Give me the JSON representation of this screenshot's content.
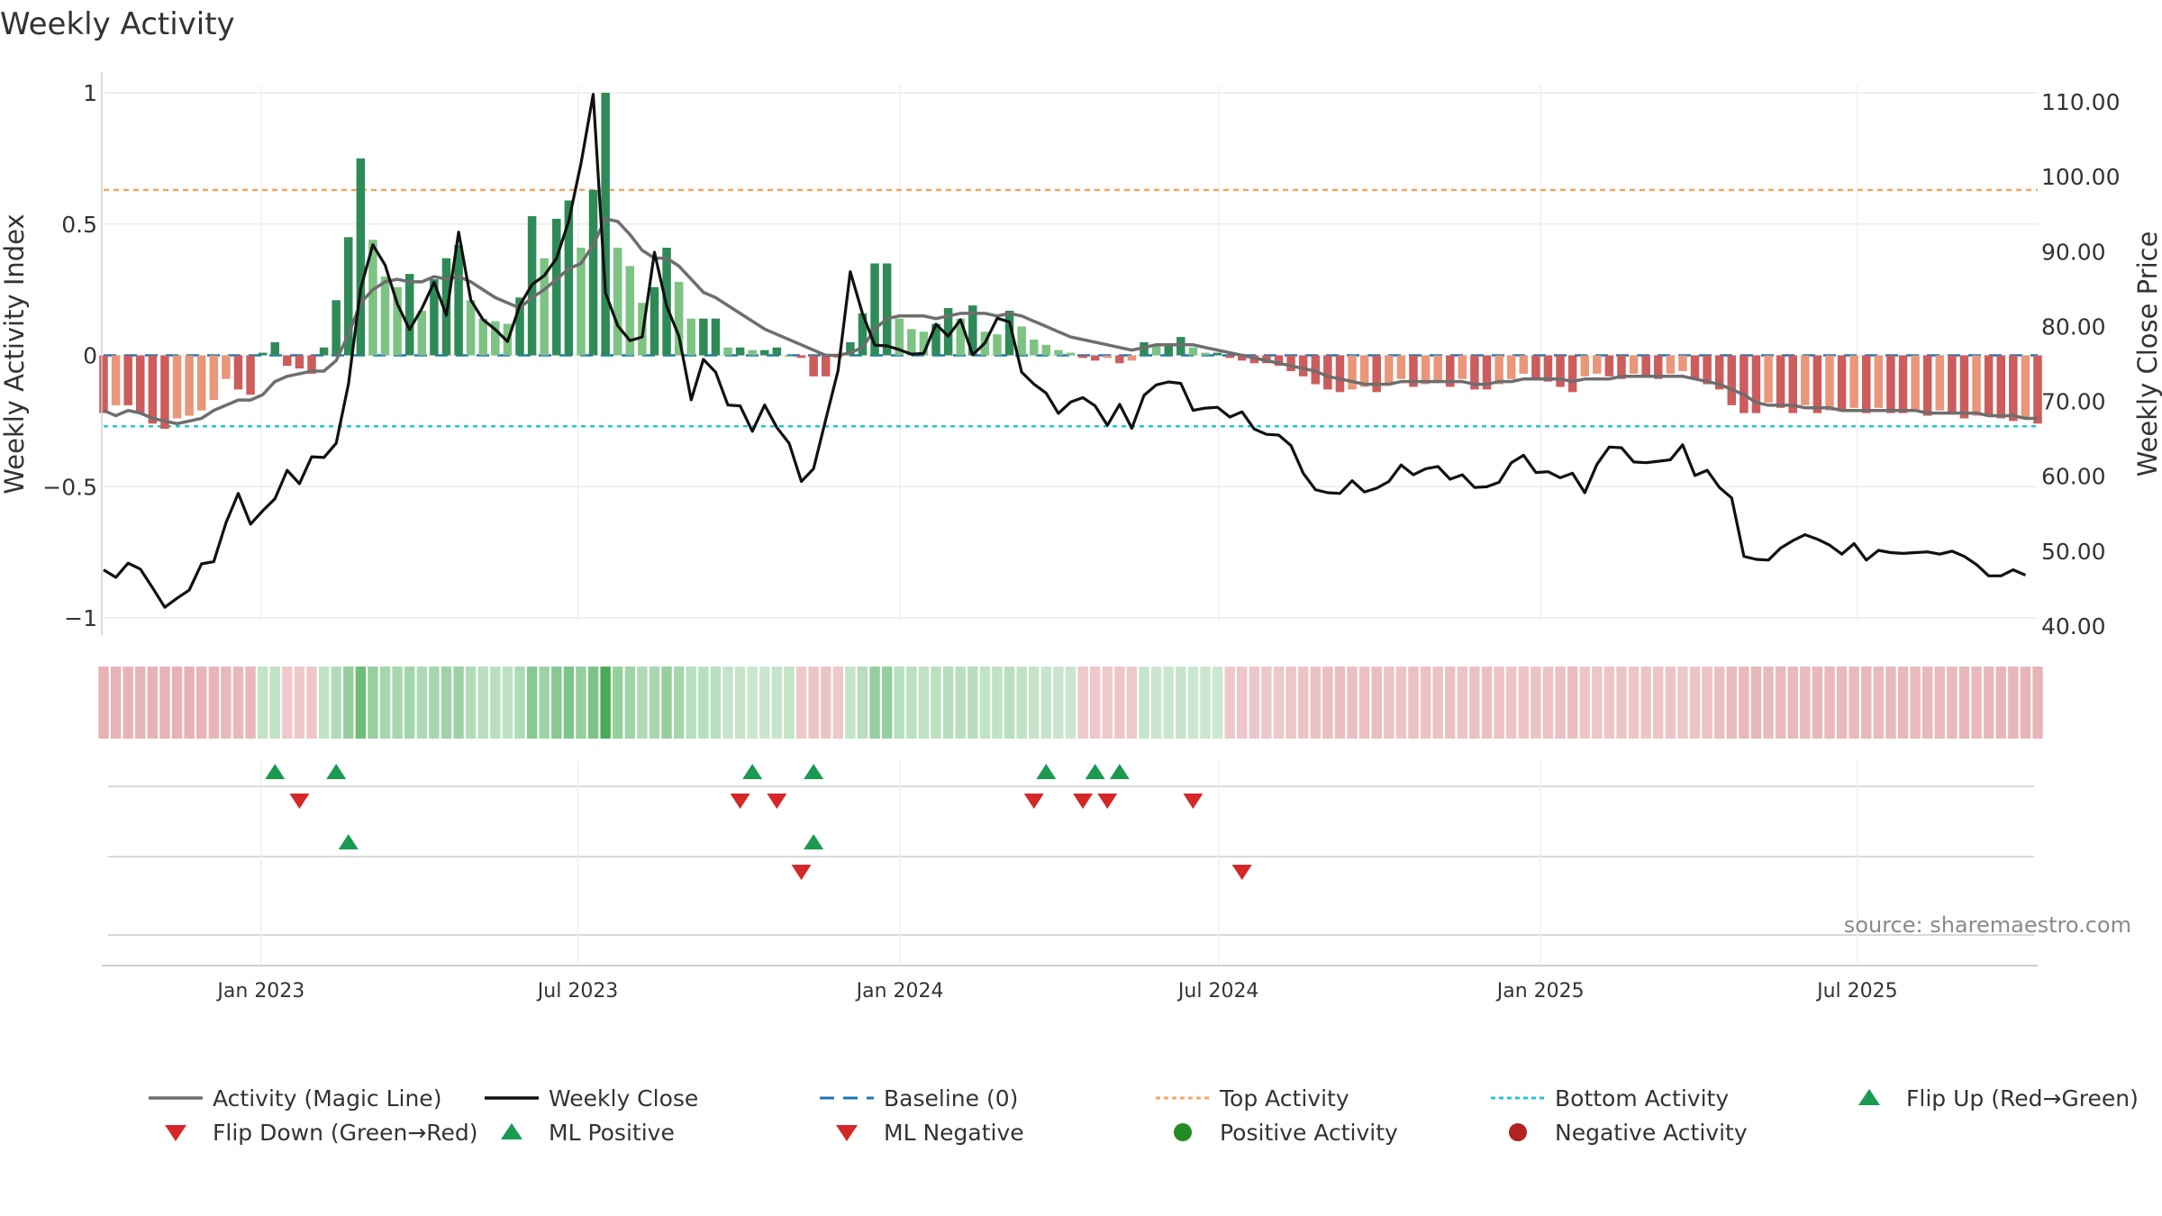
{
  "title": "Weekly Activity",
  "source": "source: sharemaestro.com",
  "colors": {
    "strong_green": "#2e8b57",
    "light_green": "#7dc383",
    "strong_red": "#cd5c5c",
    "light_red": "#e9967a",
    "magic_line": "#6e6e6e",
    "close_line": "#111111",
    "baseline": "#1f77b4",
    "top_line": "#f4a460",
    "bottom_line": "#22c5d8",
    "marker_up": "#1a9a50",
    "marker_down": "#d62728",
    "positive_dot": "#228b22",
    "negative_dot": "#b22222"
  },
  "chart_data": {
    "type": "bar",
    "ylabel_left": "Weekly Activity Index",
    "ylabel_right": "Weekly Close Price",
    "ylim_left": [
      -1.1,
      1.05
    ],
    "ylim_right": [
      38.5,
      112
    ],
    "yticks_left": [
      {
        "v": 1,
        "label": "1"
      },
      {
        "v": 0.5,
        "label": "0.5"
      },
      {
        "v": 0,
        "label": "0"
      },
      {
        "v": -0.5,
        "label": "−0.5"
      },
      {
        "v": -1,
        "label": "−1"
      }
    ],
    "yticks_right": [
      "110.00",
      "100.00",
      "90.00",
      "80.00",
      "70.00",
      "60.00",
      "50.00",
      "40.00"
    ],
    "x_start": "2022-10-03",
    "x_end": "2025-10-12",
    "xticks": [
      {
        "date": "2023-01-01",
        "label": "Jan 2023"
      },
      {
        "date": "2023-07-01",
        "label": "Jul 2023"
      },
      {
        "date": "2024-01-01",
        "label": "Jan 2024"
      },
      {
        "date": "2024-07-01",
        "label": "Jul 2024"
      },
      {
        "date": "2025-01-01",
        "label": "Jan 2025"
      },
      {
        "date": "2025-07-01",
        "label": "Jul 2025"
      }
    ],
    "top_activity": 0.63,
    "bottom_activity": -0.27,
    "activity": [
      -0.22,
      -0.19,
      -0.19,
      -0.22,
      -0.26,
      -0.28,
      -0.24,
      -0.23,
      -0.21,
      -0.17,
      -0.09,
      -0.13,
      -0.15,
      0.01,
      0.05,
      -0.04,
      -0.05,
      -0.07,
      0.03,
      0.21,
      0.45,
      0.75,
      0.44,
      0.3,
      0.26,
      0.31,
      0.17,
      0.29,
      0.37,
      0.42,
      0.21,
      0.14,
      0.13,
      0.12,
      0.22,
      0.53,
      0.37,
      0.52,
      0.59,
      0.41,
      0.63,
      1.0,
      0.41,
      0.34,
      0.2,
      0.26,
      0.41,
      0.28,
      0.14,
      0.14,
      0.14,
      0.03,
      0.03,
      0.02,
      0.02,
      0.03,
      0.0,
      -0.01,
      -0.08,
      -0.08,
      -0.01,
      0.05,
      0.16,
      0.35,
      0.35,
      0.14,
      0.1,
      0.09,
      0.12,
      0.18,
      0.14,
      0.19,
      0.09,
      0.08,
      0.17,
      0.11,
      0.06,
      0.04,
      0.02,
      0.01,
      -0.01,
      -0.02,
      -0.01,
      -0.03,
      -0.02,
      0.05,
      0.04,
      0.04,
      0.07,
      0.03,
      0.01,
      0.01,
      -0.01,
      -0.02,
      -0.03,
      -0.03,
      -0.04,
      -0.06,
      -0.08,
      -0.11,
      -0.13,
      -0.14,
      -0.13,
      -0.12,
      -0.14,
      -0.11,
      -0.09,
      -0.12,
      -0.11,
      -0.1,
      -0.12,
      -0.09,
      -0.13,
      -0.13,
      -0.11,
      -0.09,
      -0.07,
      -0.09,
      -0.1,
      -0.12,
      -0.14,
      -0.08,
      -0.07,
      -0.08,
      -0.09,
      -0.07,
      -0.08,
      -0.09,
      -0.07,
      -0.06,
      -0.09,
      -0.11,
      -0.13,
      -0.19,
      -0.22,
      -0.22,
      -0.18,
      -0.2,
      -0.22,
      -0.19,
      -0.22,
      -0.21,
      -0.21,
      -0.2,
      -0.22,
      -0.2,
      -0.22,
      -0.22,
      -0.21,
      -0.23,
      -0.21,
      -0.22,
      -0.24,
      -0.23,
      -0.23,
      -0.24,
      -0.25,
      -0.24,
      -0.26
    ],
    "magic_line": [
      -0.21,
      -0.23,
      -0.21,
      -0.22,
      -0.24,
      -0.25,
      -0.26,
      -0.25,
      -0.24,
      -0.21,
      -0.19,
      -0.17,
      -0.17,
      -0.15,
      -0.1,
      -0.08,
      -0.07,
      -0.06,
      -0.06,
      -0.02,
      0.08,
      0.2,
      0.25,
      0.28,
      0.29,
      0.28,
      0.28,
      0.3,
      0.29,
      0.3,
      0.28,
      0.25,
      0.22,
      0.2,
      0.18,
      0.22,
      0.25,
      0.29,
      0.33,
      0.35,
      0.42,
      0.52,
      0.51,
      0.46,
      0.4,
      0.37,
      0.37,
      0.34,
      0.29,
      0.24,
      0.22,
      0.19,
      0.16,
      0.13,
      0.1,
      0.08,
      0.06,
      0.04,
      0.02,
      0.0,
      0.0,
      0.01,
      0.03,
      0.1,
      0.14,
      0.15,
      0.15,
      0.15,
      0.14,
      0.15,
      0.16,
      0.16,
      0.16,
      0.15,
      0.16,
      0.15,
      0.13,
      0.11,
      0.09,
      0.07,
      0.06,
      0.05,
      0.04,
      0.03,
      0.02,
      0.03,
      0.04,
      0.04,
      0.04,
      0.04,
      0.03,
      0.02,
      0.01,
      0.0,
      -0.01,
      -0.02,
      -0.03,
      -0.04,
      -0.05,
      -0.06,
      -0.08,
      -0.09,
      -0.1,
      -0.11,
      -0.11,
      -0.11,
      -0.1,
      -0.1,
      -0.1,
      -0.1,
      -0.1,
      -0.1,
      -0.11,
      -0.11,
      -0.1,
      -0.1,
      -0.09,
      -0.09,
      -0.09,
      -0.09,
      -0.1,
      -0.09,
      -0.09,
      -0.09,
      -0.08,
      -0.08,
      -0.08,
      -0.08,
      -0.08,
      -0.08,
      -0.09,
      -0.1,
      -0.11,
      -0.13,
      -0.15,
      -0.18,
      -0.19,
      -0.19,
      -0.19,
      -0.2,
      -0.2,
      -0.2,
      -0.21,
      -0.21,
      -0.21,
      -0.21,
      -0.21,
      -0.21,
      -0.21,
      -0.22,
      -0.22,
      -0.22,
      -0.22,
      -0.22,
      -0.23,
      -0.23,
      -0.23,
      -0.24,
      -0.24
    ],
    "weekly_close": [
      47.5,
      46.5,
      48.4,
      47.6,
      45.1,
      42.5,
      43.7,
      44.8,
      48.3,
      48.6,
      53.8,
      57.7,
      53.6,
      55.4,
      57.0,
      60.8,
      59.0,
      62.6,
      62.5,
      64.4,
      72.3,
      85.1,
      90.9,
      88.2,
      83.0,
      79.6,
      82.4,
      85.9,
      81.5,
      92.6,
      83.5,
      80.9,
      79.6,
      78.0,
      82.8,
      85.6,
      86.8,
      89.1,
      94.1,
      101.8,
      111.0,
      84.5,
      80.1,
      78.1,
      78.6,
      89.9,
      82.7,
      78.7,
      70.2,
      75.6,
      73.9,
      69.5,
      69.4,
      66.0,
      69.5,
      66.5,
      64.4,
      59.3,
      61.0,
      67.6,
      74.1,
      87.3,
      81.7,
      77.5,
      77.4,
      76.9,
      76.3,
      76.4,
      80.3,
      78.7,
      80.9,
      76.2,
      77.8,
      81.1,
      80.6,
      73.9,
      72.3,
      71.1,
      68.4,
      69.9,
      70.5,
      69.4,
      66.8,
      69.6,
      66.4,
      70.8,
      72.2,
      72.6,
      72.4,
      68.8,
      69.1,
      69.2,
      67.9,
      68.6,
      66.3,
      65.6,
      65.5,
      64.1,
      60.4,
      58.2,
      57.8,
      57.7,
      59.4,
      57.9,
      58.4,
      59.3,
      61.5,
      60.2,
      61.0,
      61.3,
      59.6,
      60.2,
      58.5,
      58.6,
      59.2,
      61.8,
      62.8,
      60.5,
      60.6,
      59.8,
      60.4,
      57.8,
      61.6,
      63.9,
      63.8,
      61.9,
      61.8,
      62.0,
      62.2,
      64.2,
      60.1,
      60.8,
      58.5,
      57.1,
      49.3,
      48.9,
      48.8,
      50.4,
      51.4,
      52.2,
      51.6,
      50.8,
      49.6,
      51.0,
      48.8,
      50.1,
      49.8,
      49.7,
      49.8,
      49.9,
      49.6,
      50.0,
      49.3,
      48.2,
      46.7,
      46.7,
      47.5,
      46.8
    ],
    "heat_alpha": [
      0.45,
      0.44,
      0.44,
      0.44,
      0.45,
      0.45,
      0.45,
      0.45,
      0.44,
      0.43,
      0.42,
      0.42,
      0.42,
      0.32,
      0.33,
      0.32,
      0.32,
      0.33,
      0.32,
      0.4,
      0.55,
      0.75,
      0.55,
      0.47,
      0.45,
      0.48,
      0.42,
      0.47,
      0.5,
      0.52,
      0.4,
      0.37,
      0.36,
      0.35,
      0.42,
      0.62,
      0.5,
      0.62,
      0.67,
      0.55,
      0.68,
      0.95,
      0.55,
      0.5,
      0.42,
      0.45,
      0.55,
      0.47,
      0.37,
      0.37,
      0.37,
      0.3,
      0.3,
      0.28,
      0.28,
      0.3,
      0.32,
      0.32,
      0.35,
      0.35,
      0.32,
      0.3,
      0.38,
      0.55,
      0.55,
      0.37,
      0.35,
      0.33,
      0.35,
      0.38,
      0.36,
      0.38,
      0.33,
      0.33,
      0.36,
      0.33,
      0.3,
      0.29,
      0.28,
      0.28,
      0.32,
      0.32,
      0.32,
      0.33,
      0.32,
      0.29,
      0.28,
      0.28,
      0.3,
      0.28,
      0.27,
      0.27,
      0.32,
      0.33,
      0.33,
      0.33,
      0.33,
      0.34,
      0.35,
      0.36,
      0.37,
      0.38,
      0.37,
      0.37,
      0.38,
      0.36,
      0.35,
      0.37,
      0.36,
      0.36,
      0.37,
      0.35,
      0.37,
      0.37,
      0.36,
      0.35,
      0.34,
      0.35,
      0.36,
      0.37,
      0.38,
      0.34,
      0.34,
      0.34,
      0.35,
      0.34,
      0.34,
      0.35,
      0.34,
      0.33,
      0.35,
      0.36,
      0.37,
      0.4,
      0.42,
      0.42,
      0.4,
      0.41,
      0.42,
      0.4,
      0.42,
      0.41,
      0.41,
      0.41,
      0.42,
      0.41,
      0.42,
      0.42,
      0.41,
      0.42,
      0.41,
      0.42,
      0.43,
      0.42,
      0.42,
      0.43,
      0.43,
      0.43,
      0.44
    ],
    "flip_up": [
      14,
      19,
      53,
      58,
      77,
      81,
      83
    ],
    "flip_down": [
      16,
      52,
      55,
      76,
      80,
      82,
      89
    ],
    "ml_positive": [
      20,
      58
    ],
    "ml_negative": [
      57,
      93
    ]
  },
  "legend": [
    {
      "key": "magic",
      "label": "Activity (Magic Line)"
    },
    {
      "key": "close",
      "label": "Weekly Close"
    },
    {
      "key": "baseline",
      "label": "Baseline (0)"
    },
    {
      "key": "top",
      "label": "Top Activity"
    },
    {
      "key": "bottom",
      "label": "Bottom Activity"
    },
    {
      "key": "flipup",
      "label": "Flip Up (Red→Green)"
    },
    {
      "key": "flipdown",
      "label": "Flip Down (Green→Red)"
    },
    {
      "key": "mlpos",
      "label": "ML Positive"
    },
    {
      "key": "mlneg",
      "label": "ML Negative"
    },
    {
      "key": "posdot",
      "label": "Positive Activity"
    },
    {
      "key": "negdot",
      "label": "Negative Activity"
    }
  ]
}
